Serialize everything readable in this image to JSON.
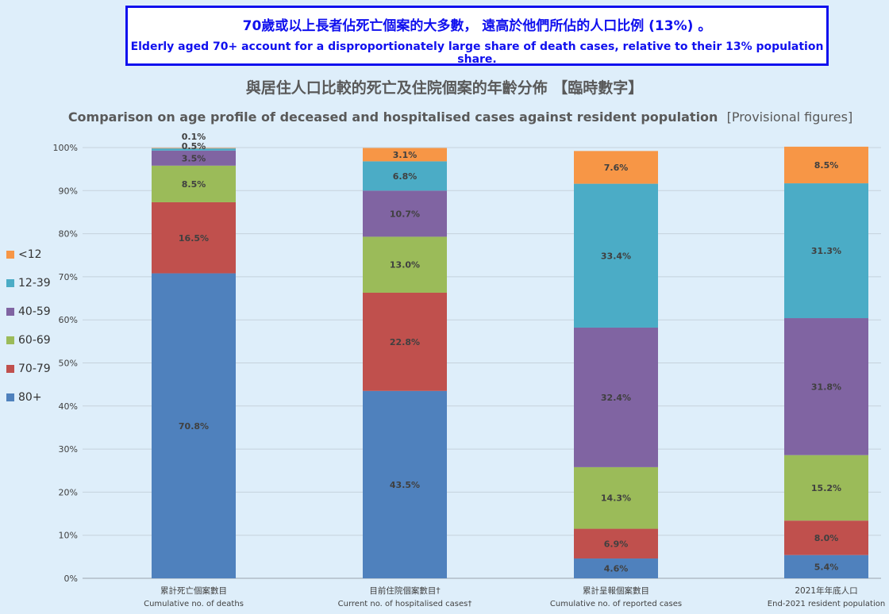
{
  "banner": {
    "zh": "70歲或以上長者佔死亡個案的大多數， 遠高於他們所佔的人口比例 (13%) 。",
    "en": "Elderly aged 70+ account for a disproportionately large share of death cases, relative to their 13% population share."
  },
  "chart_data": {
    "type": "bar",
    "stacked": true,
    "title": "與居住人口比較的死亡及住院個案的年齡分佈 【臨時數字】",
    "subtitle": "Comparison on age profile of deceased and hospitalised cases against resident population",
    "subtitle_note": "[Provisional figures]",
    "categories": [
      {
        "zh": "累計死亡個案數目",
        "en": "Cumulative no. of deaths"
      },
      {
        "zh": "目前住院個案數目†",
        "en": "Current no. of hospitalised cases†"
      },
      {
        "zh": "累計呈報個案數目",
        "en": "Cumulative no. of reported cases"
      },
      {
        "zh": "2021年年底人口",
        "en": "End-2021 resident population"
      }
    ],
    "series": [
      {
        "name": "80+",
        "color": "#4f81bd",
        "values": [
          70.8,
          43.5,
          4.6,
          5.4
        ],
        "labels": [
          "70.8%",
          "43.5%",
          "4.6%",
          "5.4%"
        ]
      },
      {
        "name": "70-79",
        "color": "#c0504d",
        "values": [
          16.5,
          22.8,
          6.9,
          8.0
        ],
        "labels": [
          "16.5%",
          "22.8%",
          "6.9%",
          "8.0%"
        ]
      },
      {
        "name": "60-69",
        "color": "#9bbb59",
        "values": [
          8.5,
          13.0,
          14.3,
          15.2
        ],
        "labels": [
          "8.5%",
          "13.0%",
          "14.3%",
          "15.2%"
        ]
      },
      {
        "name": "40-59",
        "color": "#8064a2",
        "values": [
          3.5,
          10.7,
          32.4,
          31.8
        ],
        "labels": [
          "3.5%",
          "10.7%",
          "32.4%",
          "31.8%"
        ]
      },
      {
        "name": "12-39",
        "color": "#4bacc6",
        "values": [
          0.5,
          6.8,
          33.4,
          31.3
        ],
        "labels": [
          "0.5%",
          "6.8%",
          "33.4%",
          "31.3%"
        ]
      },
      {
        "name": "<12",
        "color": "#f79646",
        "values": [
          0.1,
          3.1,
          7.6,
          8.5
        ],
        "labels": [
          "0.1%",
          "3.1%",
          "7.6%",
          "8.5%"
        ]
      }
    ],
    "ylim": [
      0,
      100
    ],
    "yticks": [
      "0%",
      "10%",
      "20%",
      "30%",
      "40%",
      "50%",
      "60%",
      "70%",
      "80%",
      "90%",
      "100%"
    ],
    "grid": true,
    "legend_position": "left",
    "legend_order": [
      "<12",
      "12-39",
      "40-59",
      "60-69",
      "70-79",
      "80+"
    ]
  }
}
